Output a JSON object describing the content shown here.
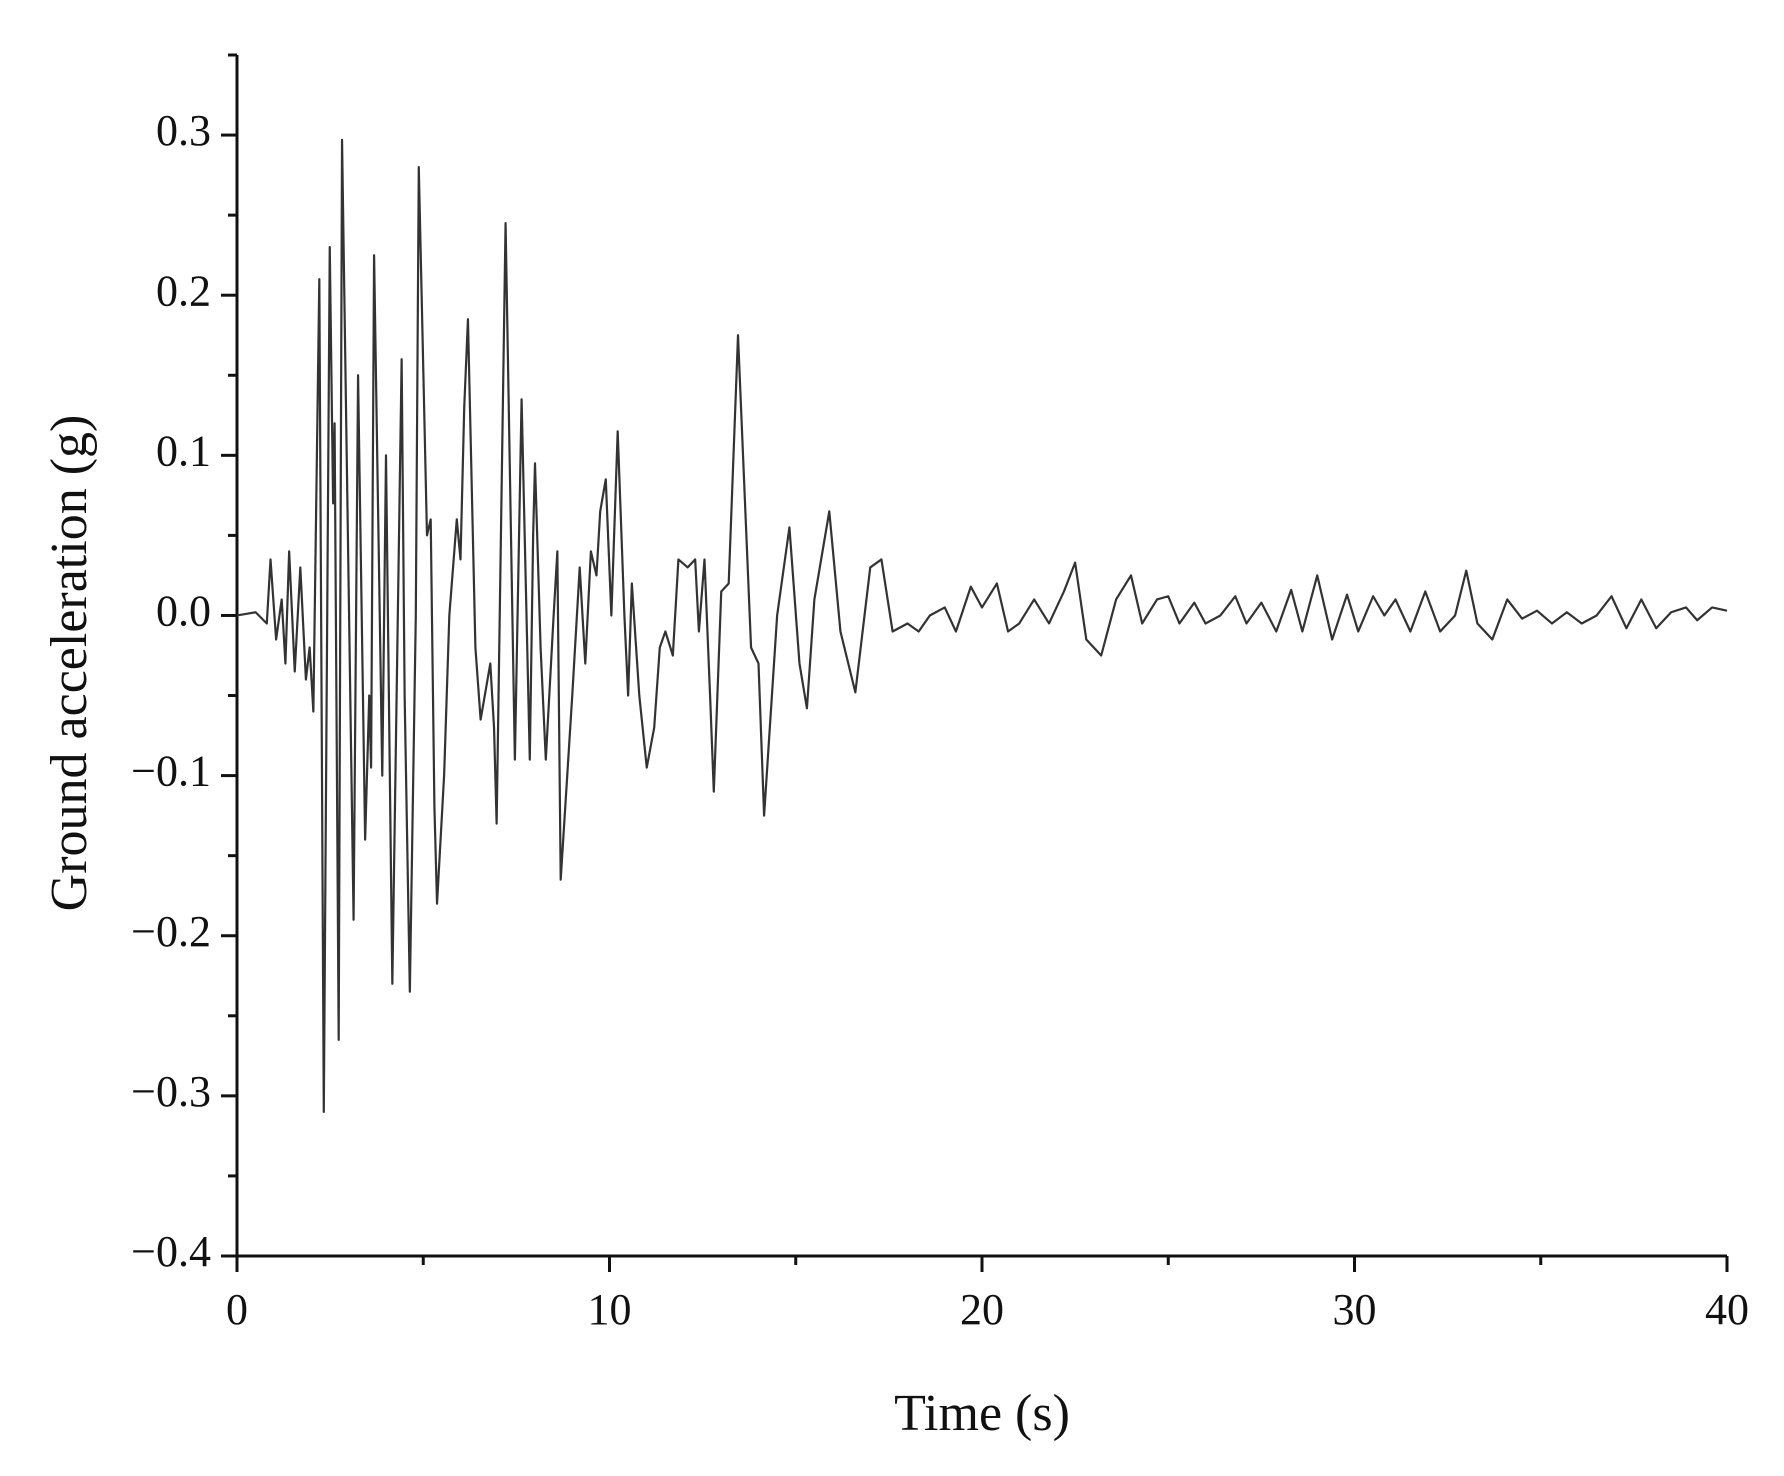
{
  "chart_data": {
    "type": "line",
    "xlabel": "Time (s)",
    "ylabel": "Ground acceleration (g)",
    "xlim": [
      0,
      40
    ],
    "ylim": [
      -0.4,
      0.35
    ],
    "xticks": [
      0,
      10,
      20,
      30,
      40
    ],
    "xminorticks": [
      5,
      15,
      25,
      35
    ],
    "yticks": [
      {
        "value": -0.4,
        "label": "−0.4"
      },
      {
        "value": -0.3,
        "label": "−0.3"
      },
      {
        "value": -0.2,
        "label": "−0.2"
      },
      {
        "value": -0.1,
        "label": "−0.1"
      },
      {
        "value": 0,
        "label": "0.0"
      },
      0.1,
      0.2,
      0.3
    ],
    "yminorticks": [
      -0.35,
      -0.25,
      -0.15,
      -0.05,
      0.05,
      0.15,
      0.25,
      0.35
    ],
    "grid": false,
    "series": [
      {
        "color": "#333333",
        "x": [
          0,
          0.5,
          0.8,
          0.9,
          1.05,
          1.2,
          1.3,
          1.4,
          1.55,
          1.7,
          1.85,
          1.95,
          2.05,
          2.21,
          2.33,
          2.49,
          2.58,
          2.62,
          2.73,
          2.82,
          3.13,
          3.25,
          3.44,
          3.55,
          3.6,
          3.68,
          3.9,
          4.0,
          4.17,
          4.42,
          4.5,
          4.64,
          4.8,
          4.88,
          5.1,
          5.2,
          5.3,
          5.37,
          5.56,
          5.7,
          5.9,
          6.0,
          6.1,
          6.2,
          6.4,
          6.54,
          6.8,
          6.9,
          6.97,
          7.21,
          7.46,
          7.64,
          7.86,
          7.95,
          8.0,
          8.15,
          8.29,
          8.5,
          8.6,
          8.69,
          9.0,
          9.2,
          9.35,
          9.5,
          9.65,
          9.75,
          9.9,
          10.05,
          10.22,
          10.4,
          10.5,
          10.6,
          10.8,
          11.0,
          11.2,
          11.35,
          11.5,
          11.7,
          11.85,
          12.1,
          12.3,
          12.4,
          12.55,
          12.7,
          12.8,
          13.0,
          13.2,
          13.45,
          13.8,
          14.0,
          14.15,
          14.5,
          14.83,
          15.1,
          15.3,
          15.5,
          15.9,
          16.2,
          16.6,
          17.0,
          17.3,
          17.6,
          18.0,
          18.3,
          18.6,
          19.0,
          19.3,
          19.7,
          20.0,
          20.4,
          20.7,
          21.0,
          21.4,
          21.8,
          22.2,
          22.5,
          22.8,
          23.2,
          23.6,
          24.0,
          24.3,
          24.7,
          25.0,
          25.3,
          25.7,
          26.0,
          26.4,
          26.8,
          27.1,
          27.5,
          27.9,
          28.3,
          28.6,
          29.0,
          29.4,
          29.8,
          30.1,
          30.5,
          30.8,
          31.1,
          31.5,
          31.9,
          32.3,
          32.7,
          33.0,
          33.3,
          33.7,
          34.1,
          34.5,
          34.9,
          35.3,
          35.7,
          36.1,
          36.5,
          36.9,
          37.3,
          37.7,
          38.1,
          38.5,
          38.9,
          39.2,
          39.6,
          40.0
        ],
        "values": [
          0,
          0.002,
          -0.005,
          0.035,
          -0.015,
          0.01,
          -0.03,
          0.04,
          -0.035,
          0.03,
          -0.04,
          -0.02,
          -0.06,
          0.21,
          -0.31,
          0.23,
          0.07,
          0.12,
          -0.265,
          0.297,
          -0.19,
          0.15,
          -0.14,
          -0.05,
          -0.095,
          0.225,
          -0.1,
          0.1,
          -0.23,
          0.16,
          -0.05,
          -0.235,
          0.0,
          0.28,
          0.05,
          0.06,
          -0.12,
          -0.18,
          -0.1,
          0.0,
          0.06,
          0.035,
          0.13,
          0.185,
          -0.02,
          -0.065,
          -0.03,
          -0.07,
          -0.13,
          0.245,
          -0.09,
          0.135,
          -0.09,
          0.05,
          0.095,
          -0.02,
          -0.09,
          0.0,
          0.04,
          -0.165,
          -0.05,
          0.03,
          -0.03,
          0.04,
          0.025,
          0.065,
          0.085,
          0.0,
          0.115,
          0.0,
          -0.05,
          0.02,
          -0.05,
          -0.095,
          -0.07,
          -0.02,
          -0.01,
          -0.025,
          0.035,
          0.03,
          0.035,
          -0.01,
          0.035,
          -0.05,
          -0.11,
          0.015,
          0.02,
          0.175,
          -0.02,
          -0.03,
          -0.125,
          0.0,
          0.055,
          -0.03,
          -0.058,
          0.01,
          0.065,
          -0.01,
          -0.048,
          0.03,
          0.035,
          -0.01,
          -0.005,
          -0.01,
          0.0,
          0.005,
          -0.01,
          0.018,
          0.005,
          0.02,
          -0.01,
          -0.005,
          0.01,
          -0.005,
          0.015,
          0.033,
          -0.015,
          -0.025,
          0.01,
          0.025,
          -0.005,
          0.01,
          0.012,
          -0.005,
          0.008,
          -0.005,
          0.0,
          0.012,
          -0.005,
          0.008,
          -0.01,
          0.016,
          -0.01,
          0.025,
          -0.015,
          0.013,
          -0.01,
          0.012,
          0.0,
          0.01,
          -0.01,
          0.015,
          -0.01,
          0.0,
          0.028,
          -0.005,
          -0.015,
          0.01,
          -0.002,
          0.003,
          -0.005,
          0.002,
          -0.005,
          0.0,
          0.012,
          -0.008,
          0.01,
          -0.008,
          0.002,
          0.005,
          -0.003,
          0.005,
          0.003
        ]
      }
    ]
  }
}
